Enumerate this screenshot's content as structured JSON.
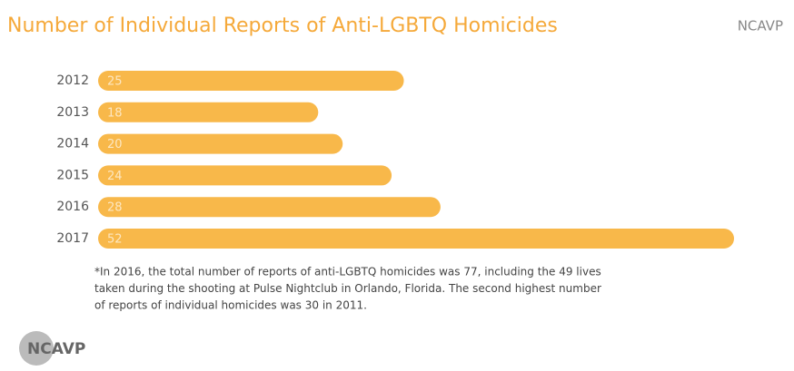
{
  "chart_data": {
    "type": "bar",
    "orientation": "horizontal",
    "title": "Number of Individual Reports of Anti-LGBTQ Homicides",
    "source": "NCAVP",
    "categories": [
      "2012",
      "2013",
      "2014",
      "2015",
      "2016",
      "2017"
    ],
    "values": [
      25,
      18,
      20,
      24,
      28,
      52
    ],
    "color": "#f8b84a",
    "footnote": [
      "*In 2016, the total number of reports of anti-LGBTQ homicides was 77, including the 49 lives",
      "taken during the shooting at Pulse Nightclub in Orlando, Florida. The second highest number",
      "of reports of individual homicides was 30 in 2011."
    ],
    "logo": "NCAVP"
  }
}
